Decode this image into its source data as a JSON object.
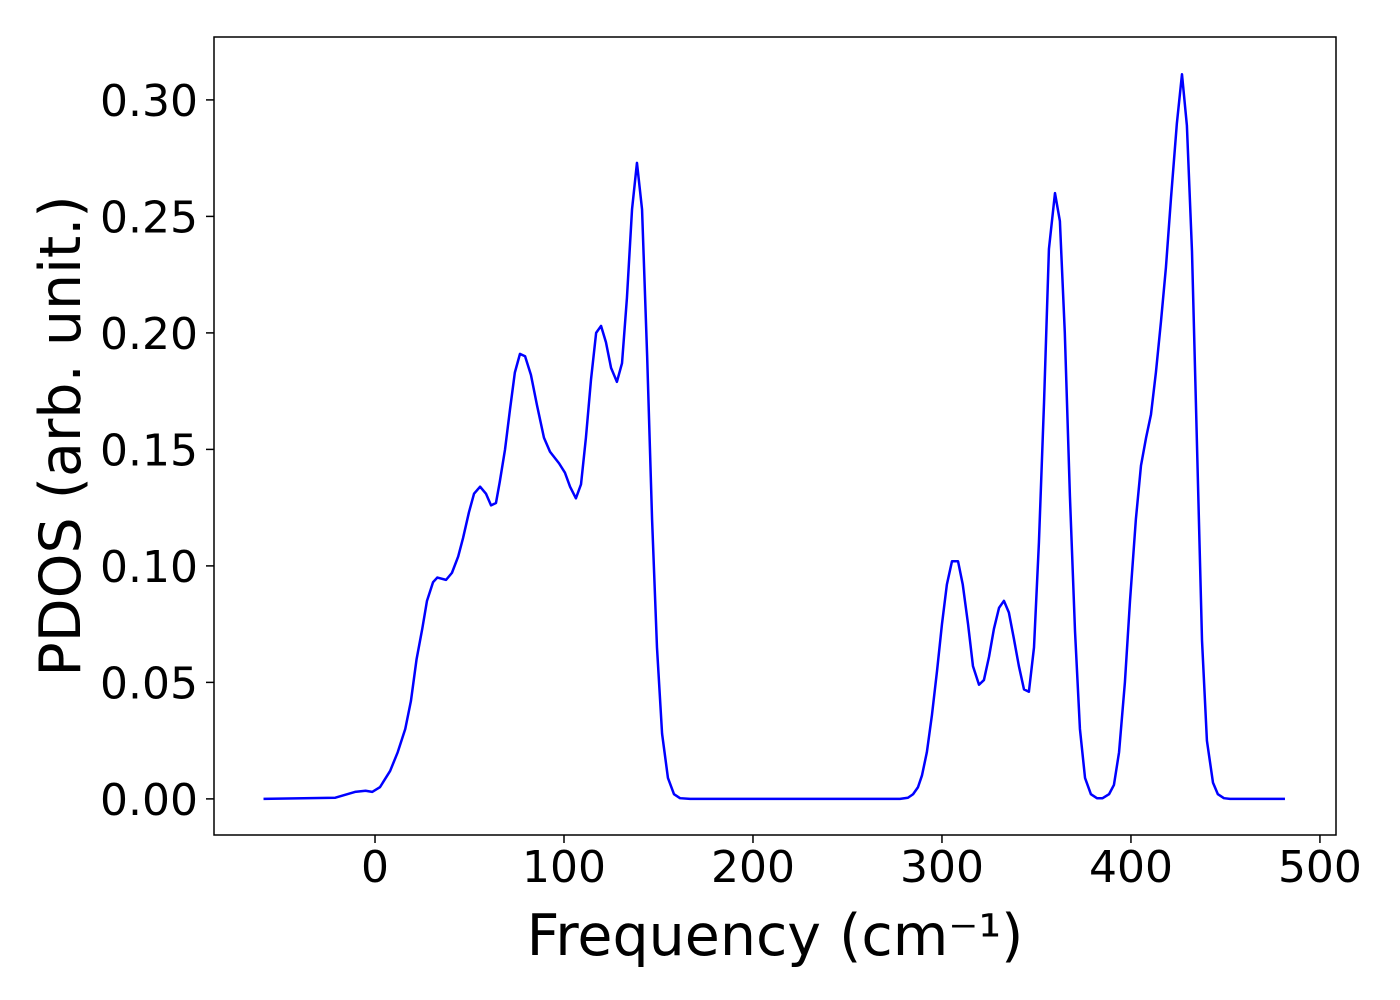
{
  "chart_data": {
    "type": "line",
    "xlabel": "Frequency (cm⁻¹)",
    "ylabel": "PDOS (arb. unit.)",
    "xlim": [
      -85.2,
      508.5
    ],
    "ylim": [
      -0.0155,
      0.327
    ],
    "xticks": [
      0,
      100,
      200,
      300,
      400,
      500
    ],
    "yticks": [
      {
        "value": 0,
        "label": "0.00"
      },
      {
        "value": 0.05,
        "label": "0.05"
      },
      {
        "value": 0.1,
        "label": "0.10"
      },
      {
        "value": 0.15,
        "label": "0.15"
      },
      {
        "value": 0.2,
        "label": "0.20"
      },
      {
        "value": 0.25,
        "label": "0.25"
      },
      {
        "value": 0.3,
        "label": "0.30"
      }
    ],
    "grid": false,
    "x": [
      -59,
      -21,
      -10.6,
      -5,
      -1.5,
      2.6,
      8,
      12,
      16,
      19,
      22,
      25,
      27.5,
      30.7,
      33,
      37.6,
      40.7,
      44,
      46.6,
      49.7,
      52.4,
      55.6,
      58.7,
      61.4,
      64,
      66,
      68.8,
      71.4,
      74,
      76.7,
      79.4,
      82.5,
      85.7,
      89.4,
      92.6,
      97.4,
      100.5,
      103.2,
      106.3,
      109,
      111.6,
      114.3,
      117,
      119.6,
      122.2,
      124.9,
      128,
      130.7,
      133.3,
      136,
      138.6,
      141.3,
      144,
      146.6,
      149.2,
      151.9,
      155,
      158.2,
      161.4,
      166.7,
      277.8,
      282,
      284.7,
      287.3,
      289.4,
      292,
      294.7,
      297.4,
      300,
      302.6,
      305.3,
      308.5,
      311,
      313.8,
      316.4,
      319.6,
      322.2,
      324.9,
      327.5,
      330.2,
      332.8,
      335.4,
      338,
      340.7,
      343.4,
      346,
      348.7,
      351.3,
      354,
      356.6,
      359.8,
      362.4,
      365,
      367.7,
      370.4,
      373,
      375.7,
      378.8,
      382,
      385,
      388.4,
      391,
      393.7,
      396.8,
      399.5,
      402.6,
      405.3,
      408,
      410.6,
      413.2,
      415.9,
      418.5,
      421.2,
      424.3,
      427,
      429.6,
      432.3,
      435,
      437.6,
      440.2,
      443.4,
      446,
      449.2,
      452.4,
      481.5
    ],
    "series": [
      {
        "name": "PDOS",
        "color": "#0000ff",
        "values": [
          0,
          0.0005,
          0.003,
          0.0035,
          0.003,
          0.005,
          0.012,
          0.02,
          0.03,
          0.042,
          0.06,
          0.073,
          0.085,
          0.093,
          0.095,
          0.094,
          0.097,
          0.104,
          0.112,
          0.123,
          0.131,
          0.134,
          0.131,
          0.126,
          0.127,
          0.136,
          0.15,
          0.167,
          0.183,
          0.191,
          0.19,
          0.182,
          0.169,
          0.155,
          0.149,
          0.144,
          0.14,
          0.134,
          0.129,
          0.135,
          0.155,
          0.18,
          0.2,
          0.203,
          0.196,
          0.185,
          0.179,
          0.187,
          0.215,
          0.253,
          0.273,
          0.253,
          0.19,
          0.12,
          0.065,
          0.028,
          0.009,
          0.002,
          0.0003,
          0,
          0,
          0.0005,
          0.002,
          0.005,
          0.01,
          0.02,
          0.036,
          0.055,
          0.075,
          0.092,
          0.102,
          0.102,
          0.092,
          0.075,
          0.057,
          0.049,
          0.051,
          0.061,
          0.073,
          0.082,
          0.085,
          0.08,
          0.069,
          0.057,
          0.047,
          0.046,
          0.065,
          0.11,
          0.17,
          0.236,
          0.26,
          0.248,
          0.2,
          0.13,
          0.072,
          0.03,
          0.009,
          0.002,
          0.0003,
          0.0003,
          0.002,
          0.006,
          0.02,
          0.05,
          0.085,
          0.12,
          0.143,
          0.155,
          0.165,
          0.183,
          0.205,
          0.228,
          0.258,
          0.29,
          0.311,
          0.289,
          0.235,
          0.15,
          0.068,
          0.025,
          0.007,
          0.002,
          0.0003,
          0,
          0
        ]
      }
    ]
  }
}
